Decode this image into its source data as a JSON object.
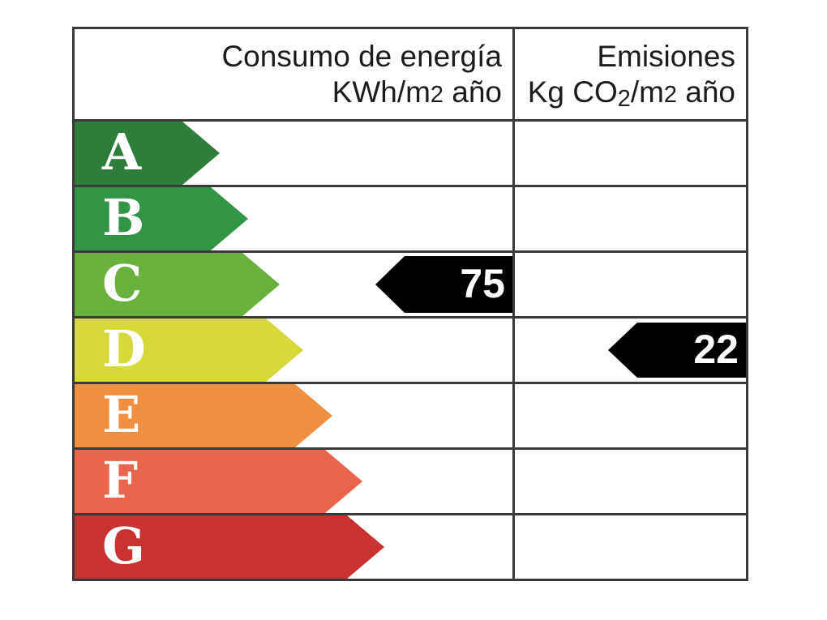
{
  "header": {
    "consumption": {
      "line1": "Consumo de energía",
      "line2_prefix": "KWh/m",
      "line2_exp": "2",
      "line2_suffix": " año"
    },
    "emissions": {
      "line1": "Emisiones",
      "line2_prefix": "Kg CO",
      "line2_sub": "2",
      "line2_mid": "/m",
      "line2_exp": "2",
      "line2_suffix": " año"
    }
  },
  "scale": {
    "ratings": [
      {
        "letter": "A",
        "color": "#2e7d3b"
      },
      {
        "letter": "B",
        "color": "#319545"
      },
      {
        "letter": "C",
        "color": "#67b13c"
      },
      {
        "letter": "D",
        "color": "#d7d93b"
      },
      {
        "letter": "E",
        "color": "#ef9041"
      },
      {
        "letter": "F",
        "color": "#ea634b"
      },
      {
        "letter": "G",
        "color": "#ca3232"
      }
    ]
  },
  "indicators": {
    "consumption": {
      "rating_letter": "C",
      "value": "75"
    },
    "emissions": {
      "rating_letter": "D",
      "value": "22"
    }
  },
  "colors": {
    "grid": "#3a3a3a",
    "indicator": "#000000",
    "rating_letter_text": "#ffffff",
    "header_text": "#1c1c1c",
    "background": "#ffffff"
  },
  "chart_data": {
    "type": "table",
    "title": "Etiqueta de eficiencia energética",
    "columns": [
      "Consumo de energía KWh/m2 año",
      "Emisiones Kg CO2/m2 año"
    ],
    "categories": [
      "A",
      "B",
      "C",
      "D",
      "E",
      "F",
      "G"
    ],
    "series": [
      {
        "name": "Consumo de energía KWh/m2 año",
        "rating": "C",
        "value": 75
      },
      {
        "name": "Emisiones Kg CO2/m2 año",
        "rating": "D",
        "value": 22
      }
    ],
    "layout_hints": {
      "scale_colors": [
        "#2e7d3b",
        "#319545",
        "#67b13c",
        "#d7d93b",
        "#ef9041",
        "#ea634b",
        "#ca3232"
      ],
      "indicator_color": "#000000",
      "grid": "on",
      "arrow_lengths_relative": [
        0.33,
        0.4,
        0.47,
        0.52,
        0.59,
        0.66,
        0.71
      ]
    }
  }
}
